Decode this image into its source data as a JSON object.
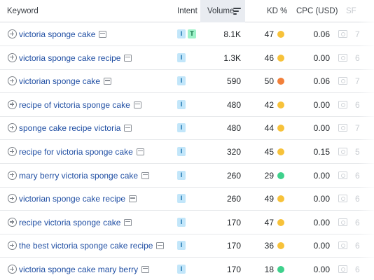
{
  "columns": {
    "keyword": "Keyword",
    "intent": "Intent",
    "volume": "Volume",
    "kd": "KD %",
    "cpc": "CPC (USD)",
    "sf": "SF"
  },
  "kd_colors": {
    "yellow": "#f7c23a",
    "orange": "#f2803a",
    "green": "#3fd18c"
  },
  "intent_colors": {
    "I": "#c2e6fa",
    "T": "#9ef2c9"
  },
  "rows": [
    {
      "keyword": "victoria sponge cake",
      "intents": [
        "I",
        "T"
      ],
      "volume": "8.1K",
      "kd": "47",
      "kd_color": "#f7c23a",
      "cpc": "0.06",
      "sf": "7"
    },
    {
      "keyword": "victoria sponge cake recipe",
      "intents": [
        "I"
      ],
      "volume": "1.3K",
      "kd": "46",
      "kd_color": "#f7c23a",
      "cpc": "0.00",
      "sf": "6"
    },
    {
      "keyword": "victorian sponge cake",
      "intents": [
        "I"
      ],
      "volume": "590",
      "kd": "50",
      "kd_color": "#f2803a",
      "cpc": "0.06",
      "sf": "7"
    },
    {
      "keyword": "recipe of victoria sponge cake",
      "intents": [
        "I"
      ],
      "volume": "480",
      "kd": "42",
      "kd_color": "#f7c23a",
      "cpc": "0.00",
      "sf": "6"
    },
    {
      "keyword": "sponge cake recipe victoria",
      "intents": [
        "I"
      ],
      "volume": "480",
      "kd": "44",
      "kd_color": "#f7c23a",
      "cpc": "0.00",
      "sf": "7"
    },
    {
      "keyword": "recipe for victoria sponge cake",
      "intents": [
        "I"
      ],
      "volume": "320",
      "kd": "45",
      "kd_color": "#f7c23a",
      "cpc": "0.15",
      "sf": "5"
    },
    {
      "keyword": "mary berry victoria sponge cake",
      "intents": [
        "I"
      ],
      "volume": "260",
      "kd": "29",
      "kd_color": "#3fd18c",
      "cpc": "0.00",
      "sf": "6"
    },
    {
      "keyword": "victorian sponge cake recipe",
      "intents": [
        "I"
      ],
      "volume": "260",
      "kd": "49",
      "kd_color": "#f7c23a",
      "cpc": "0.00",
      "sf": "6"
    },
    {
      "keyword": "recipe victoria sponge cake",
      "intents": [
        "I"
      ],
      "volume": "170",
      "kd": "47",
      "kd_color": "#f7c23a",
      "cpc": "0.00",
      "sf": "6"
    },
    {
      "keyword": "the best victoria sponge cake recipe",
      "intents": [
        "I"
      ],
      "volume": "170",
      "kd": "36",
      "kd_color": "#f7c23a",
      "cpc": "0.00",
      "sf": "6"
    },
    {
      "keyword": "victoria sponge cake mary berry",
      "intents": [
        "I"
      ],
      "volume": "170",
      "kd": "18",
      "kd_color": "#3fd18c",
      "cpc": "0.00",
      "sf": "6"
    }
  ]
}
